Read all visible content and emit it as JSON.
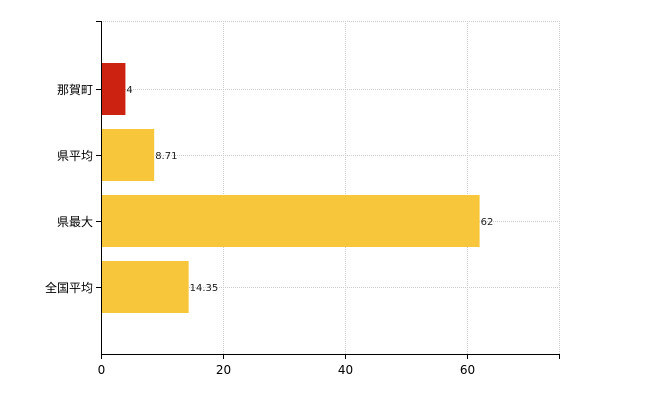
{
  "chart_data": {
    "type": "bar",
    "orientation": "horizontal",
    "categories": [
      "那賀町",
      "県平均",
      "県最大",
      "全国平均"
    ],
    "values": [
      4,
      8.71,
      62,
      14.35
    ],
    "value_labels": [
      "4",
      "8.71",
      "62",
      "14.35"
    ],
    "bar_colors": [
      "#cc2211",
      "#f8c63a",
      "#f8c63a",
      "#f8c63a"
    ],
    "highlight_color": "#cc2211",
    "default_color": "#f8c63a",
    "xlim": [
      0,
      75
    ],
    "x_ticks": [
      0,
      20,
      40,
      60
    ],
    "x_tick_labels": [
      "0",
      "20",
      "40",
      "60"
    ],
    "grid": true,
    "grid_style": "dotted",
    "title": "",
    "xlabel": "",
    "ylabel": ""
  }
}
